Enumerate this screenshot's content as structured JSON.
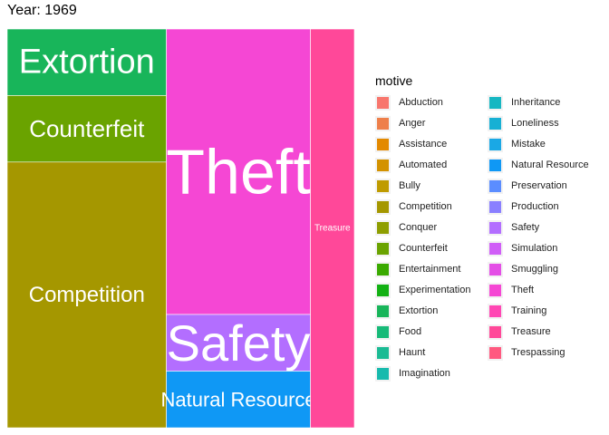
{
  "title": "Year: 1969",
  "legend": {
    "title": "motive",
    "items": [
      {
        "label": "Abduction",
        "color": "#F8766D"
      },
      {
        "label": "Anger",
        "color": "#EE7F4A"
      },
      {
        "label": "Assistance",
        "color": "#E38900"
      },
      {
        "label": "Automated",
        "color": "#D39200"
      },
      {
        "label": "Bully",
        "color": "#BF9B00"
      },
      {
        "label": "Competition",
        "color": "#A59700"
      },
      {
        "label": "Conquer",
        "color": "#8E9E00"
      },
      {
        "label": "Counterfeit",
        "color": "#6AA300"
      },
      {
        "label": "Entertainment",
        "color": "#3AAA00"
      },
      {
        "label": "Experimentation",
        "color": "#13B114"
      },
      {
        "label": "Extortion",
        "color": "#18B55A"
      },
      {
        "label": "Food",
        "color": "#17BA78"
      },
      {
        "label": "Haunt",
        "color": "#1BBB94"
      },
      {
        "label": "Imagination",
        "color": "#17BAAD"
      },
      {
        "label": "Inheritance",
        "color": "#17B7C2"
      },
      {
        "label": "Loneliness",
        "color": "#17B0D4"
      },
      {
        "label": "Mistake",
        "color": "#1AA8E5"
      },
      {
        "label": "Natural Resource",
        "color": "#0F98F5"
      },
      {
        "label": "Preservation",
        "color": "#5B8DFF"
      },
      {
        "label": "Production",
        "color": "#8A7FFF"
      },
      {
        "label": "Safety",
        "color": "#B36EFF"
      },
      {
        "label": "Simulation",
        "color": "#D05EF7"
      },
      {
        "label": "Smuggling",
        "color": "#E44EE6"
      },
      {
        "label": "Theft",
        "color": "#F547D4"
      },
      {
        "label": "Training",
        "color": "#FF47B4"
      },
      {
        "label": "Treasure",
        "color": "#FF4899"
      },
      {
        "label": "Trespassing",
        "color": "#FF5980"
      }
    ]
  },
  "chart_data": {
    "type": "treemap",
    "title": "Year: 1969",
    "legend_title": "motive",
    "legend_position": "right",
    "tiles": [
      {
        "label": "Extortion",
        "value": 0.0733,
        "color": "#18B55A"
      },
      {
        "label": "Counterfeit",
        "value": 0.0733,
        "color": "#6AA300"
      },
      {
        "label": "Competition",
        "value": 0.2927,
        "color": "#A59700"
      },
      {
        "label": "Theft",
        "value": 0.2848,
        "color": "#F547D4"
      },
      {
        "label": "Safety",
        "value": 0.0565,
        "color": "#B36EFF"
      },
      {
        "label": "Natural Resource",
        "value": 0.0565,
        "color": "#0F98F5"
      },
      {
        "label": "Treasure",
        "value": 0.1212,
        "color": "#FF4899"
      }
    ]
  }
}
